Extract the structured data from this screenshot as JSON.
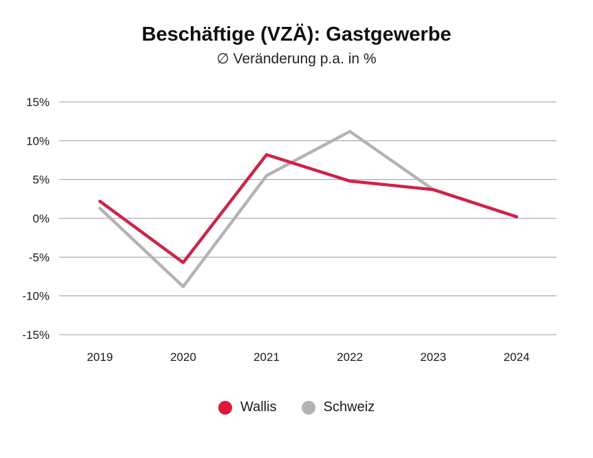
{
  "title": "Beschäftige (VZÄ): Gastgewerbe",
  "subtitle": "∅ Veränderung p.a. in %",
  "chart_data": {
    "type": "line",
    "title": "Beschäftige (VZÄ): Gastgewerbe",
    "subtitle": "∅ Veränderung p.a. in %",
    "x": [
      "2019",
      "2020",
      "2021",
      "2022",
      "2023",
      "2024"
    ],
    "y_ticks": [
      "15%",
      "10%",
      "5%",
      "0%",
      "-5%",
      "-10%",
      "-15%"
    ],
    "ylim": [
      -15,
      15
    ],
    "grid": true,
    "legend_position": "bottom",
    "series": [
      {
        "name": "Wallis",
        "values": [
          2.2,
          -5.7,
          8.2,
          4.8,
          3.7,
          0.2
        ],
        "color": "#d41f46",
        "legend_color": "#e0173c"
      },
      {
        "name": "Schweiz",
        "values": [
          1.3,
          -8.8,
          5.5,
          11.2,
          3.7,
          0.2
        ],
        "color": "#b3b3b3",
        "legend_color": "#b3b3b3"
      }
    ]
  }
}
